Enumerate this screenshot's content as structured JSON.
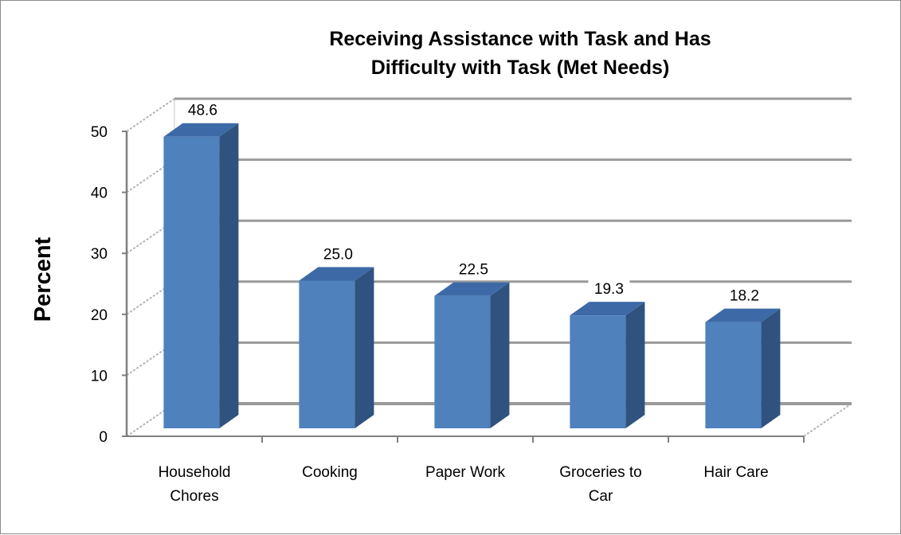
{
  "chart_data": {
    "type": "bar",
    "style": "3d-column",
    "title_lines": [
      "Receiving Assistance with Task and Has",
      "Difficulty with Task (Met Needs)"
    ],
    "xlabel": "",
    "ylabel": "Percent",
    "categories": [
      [
        "Household",
        "Chores"
      ],
      [
        "Cooking"
      ],
      [
        "Paper Work"
      ],
      [
        "Groceries to",
        "Car"
      ],
      [
        "Hair Care"
      ]
    ],
    "values": [
      48.6,
      25.0,
      22.5,
      19.3,
      18.2
    ],
    "data_labels": [
      "48.6",
      "25.0",
      "22.5",
      "19.3",
      "18.2"
    ],
    "y_ticks": [
      "0",
      "10",
      "20",
      "30",
      "40",
      "50"
    ],
    "ylim": [
      0,
      50
    ],
    "grid": true,
    "legend": "none",
    "colors": {
      "bar_front": "#4f81bd",
      "bar_side": "#2f527f",
      "bar_top": "#3d6aa6",
      "gridline": "#9a9a9a",
      "axis": "#7f7f7f"
    }
  }
}
